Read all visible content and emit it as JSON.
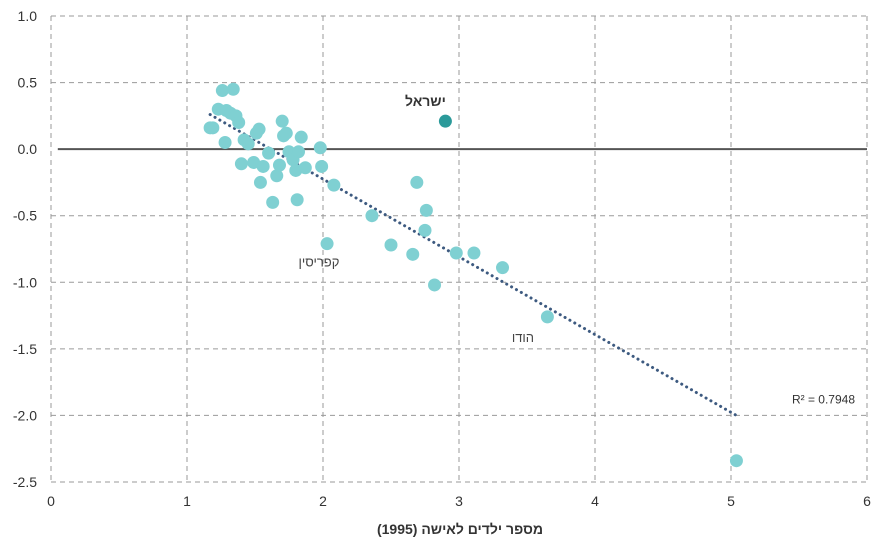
{
  "chart_data": {
    "type": "scatter",
    "title": "",
    "xlabel": "מספר ילדים לאישה (1995)",
    "ylabel": "",
    "xlim": [
      0,
      6
    ],
    "ylim": [
      -2.5,
      1.0
    ],
    "x_ticks": [
      "0",
      "1",
      "2",
      "3",
      "4",
      "5",
      "6"
    ],
    "y_ticks": [
      "1.0",
      "0.5",
      "0.0",
      "-0.5",
      "-1.0",
      "-1.5",
      "-2.0",
      "-2.5"
    ],
    "grid": true,
    "point_color": "#7fd0d2",
    "highlight_color": "#2b9a9a",
    "trend_color": "#3d5a80",
    "points": [
      {
        "x": 1.17,
        "y": 0.16
      },
      {
        "x": 1.19,
        "y": 0.16
      },
      {
        "x": 1.23,
        "y": 0.3
      },
      {
        "x": 1.26,
        "y": 0.44
      },
      {
        "x": 1.28,
        "y": 0.05
      },
      {
        "x": 1.29,
        "y": 0.29
      },
      {
        "x": 1.32,
        "y": 0.27
      },
      {
        "x": 1.34,
        "y": 0.45
      },
      {
        "x": 1.36,
        "y": 0.25
      },
      {
        "x": 1.38,
        "y": 0.2
      },
      {
        "x": 1.4,
        "y": -0.11
      },
      {
        "x": 1.42,
        "y": 0.07
      },
      {
        "x": 1.45,
        "y": 0.04
      },
      {
        "x": 1.49,
        "y": -0.1
      },
      {
        "x": 1.51,
        "y": 0.12
      },
      {
        "x": 1.53,
        "y": 0.15
      },
      {
        "x": 1.54,
        "y": -0.25
      },
      {
        "x": 1.56,
        "y": -0.13
      },
      {
        "x": 1.6,
        "y": -0.03
      },
      {
        "x": 1.63,
        "y": -0.4
      },
      {
        "x": 1.66,
        "y": -0.2
      },
      {
        "x": 1.68,
        "y": -0.12
      },
      {
        "x": 1.7,
        "y": 0.21
      },
      {
        "x": 1.71,
        "y": 0.1
      },
      {
        "x": 1.73,
        "y": 0.12
      },
      {
        "x": 1.75,
        "y": -0.02
      },
      {
        "x": 1.78,
        "y": -0.08
      },
      {
        "x": 1.8,
        "y": -0.16
      },
      {
        "x": 1.81,
        "y": -0.38
      },
      {
        "x": 1.82,
        "y": -0.02
      },
      {
        "x": 1.84,
        "y": 0.09
      },
      {
        "x": 1.87,
        "y": -0.14
      },
      {
        "x": 1.98,
        "y": 0.01
      },
      {
        "x": 1.99,
        "y": -0.13
      },
      {
        "x": 2.03,
        "y": -0.71
      },
      {
        "x": 2.08,
        "y": -0.27
      },
      {
        "x": 2.36,
        "y": -0.5
      },
      {
        "x": 2.5,
        "y": -0.72
      },
      {
        "x": 2.66,
        "y": -0.79
      },
      {
        "x": 2.69,
        "y": -0.25
      },
      {
        "x": 2.75,
        "y": -0.61
      },
      {
        "x": 2.76,
        "y": -0.46
      },
      {
        "x": 2.82,
        "y": -1.02
      },
      {
        "x": 2.98,
        "y": -0.78
      },
      {
        "x": 3.11,
        "y": -0.78
      },
      {
        "x": 3.32,
        "y": -0.89
      },
      {
        "x": 3.65,
        "y": -1.26
      },
      {
        "x": 5.04,
        "y": -2.34
      }
    ],
    "highlight": {
      "label": "ישראל",
      "x": 2.9,
      "y": 0.21
    },
    "annotations": [
      {
        "text": "קפריסין",
        "x": 1.97,
        "y": -0.85
      },
      {
        "text": "הודו",
        "x": 3.47,
        "y": -1.42
      }
    ],
    "trendline": {
      "x": [
        1.17,
        5.04
      ],
      "y": [
        0.26,
        -2.0
      ],
      "r2_label": "R² = 0.7948",
      "r2_x": 5.68,
      "r2_y": -1.88
    }
  }
}
